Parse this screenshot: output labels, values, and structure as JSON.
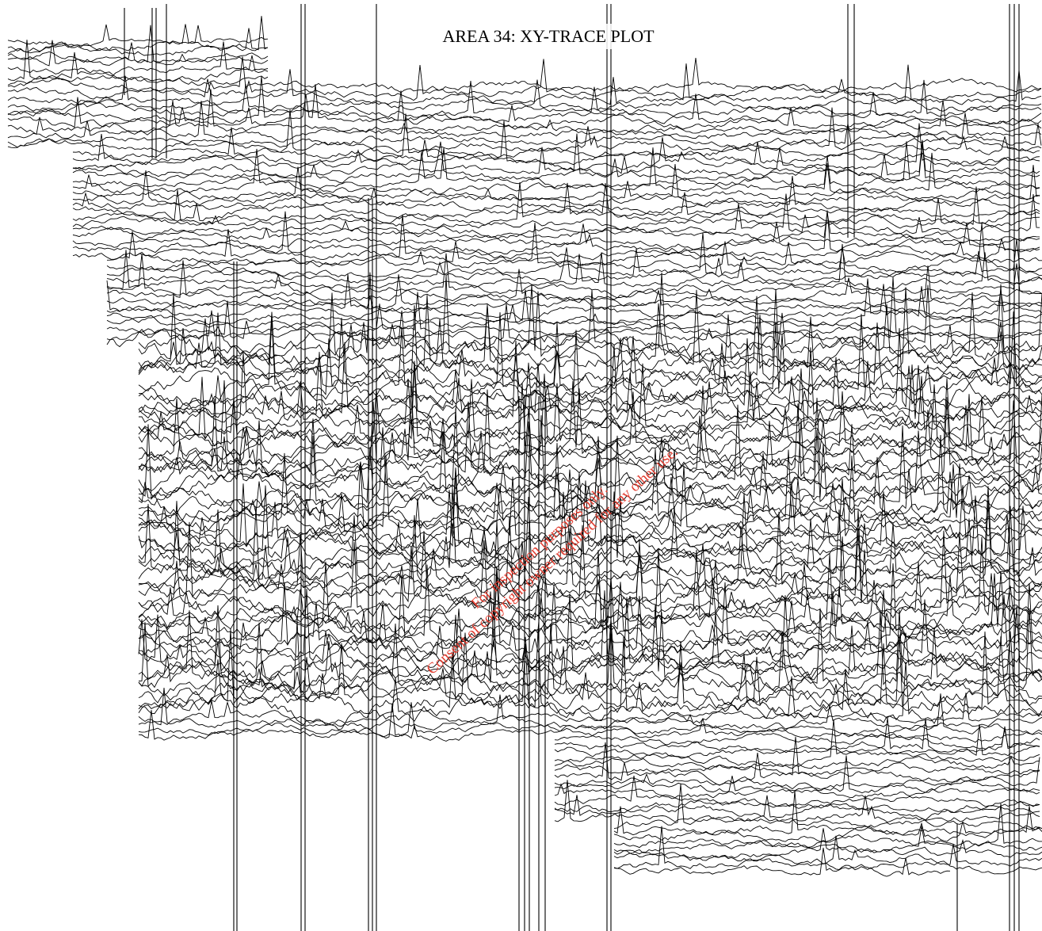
{
  "title": "AREA 34: XY-TRACE PLOT",
  "watermark": [
    "For inspection purposes only.",
    "Consent of copyright owner required for any other use."
  ]
}
